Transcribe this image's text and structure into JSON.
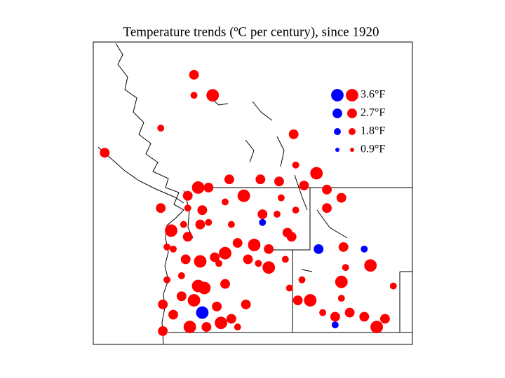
{
  "chart_data": {
    "type": "scatter",
    "title": "Temperature trends (ºC per century), since 1920",
    "xlim": [
      -127.45,
      -112.08
    ],
    "ylim": [
      41.35,
      56.1
    ],
    "colors": {
      "warming": "#ff0000",
      "cooling": "#0000ff"
    },
    "legend": [
      {
        "value": 3.6,
        "label": "3.6°F"
      },
      {
        "value": 2.7,
        "label": "2.7°F"
      },
      {
        "value": 1.8,
        "label": "1.8°F"
      },
      {
        "value": 0.9,
        "label": "0.9°F"
      }
    ],
    "x": [
      -122.6,
      -122.6,
      -121.7,
      -124.2,
      -126.9,
      -117.8,
      -117.7,
      -116.7,
      -120.9,
      -119.4,
      -118.5,
      -122.4,
      -121.9,
      -122.9,
      -120.2,
      -118.4,
      -117.3,
      -116.2,
      -116.2,
      -115.5,
      -124.2,
      -122.9,
      -122.2,
      -121.1,
      -119.3,
      -118.6,
      -117.7,
      -123.1,
      -122.3,
      -121.9,
      -120.8,
      -123.7,
      -122.9,
      -119.3,
      -118.1,
      -123.9,
      -123.6,
      -120.5,
      -119.7,
      -119.0,
      -117.9,
      -116.6,
      -115.4,
      -114.4,
      -123.0,
      -122.3,
      -121.6,
      -121.1,
      -121.4,
      -120.0,
      -119.5,
      -119.0,
      -118.2,
      -115.3,
      -114.1,
      -123.9,
      -123.2,
      -122.4,
      -122.1,
      -121.1,
      -117.4,
      -115.5,
      -118.0,
      -123.2,
      -122.6,
      -124.1,
      -117.6,
      -117.0,
      -115.5,
      -113.0,
      -123.6,
      -122.2,
      -121.5,
      -120.1,
      -116.4,
      -115.8,
      -115.1,
      -124.1,
      -122.8,
      -122.0,
      -121.3,
      -120.8,
      -120.5,
      -115.8,
      -114.4,
      -113.8,
      -113.4
    ],
    "y": [
      54.5,
      53.5,
      53.5,
      51.9,
      50.7,
      51.6,
      50.1,
      49.7,
      49.4,
      49.4,
      49.3,
      49.0,
      49.0,
      48.6,
      48.6,
      48.5,
      49.1,
      48.9,
      48.0,
      48.5,
      48.0,
      48.0,
      47.9,
      48.3,
      47.7,
      47.7,
      47.9,
      47.2,
      47.2,
      47.3,
      47.2,
      46.9,
      46.6,
      47.3,
      46.8,
      46.1,
      46.0,
      46.3,
      46.2,
      46.0,
      46.6,
      46.0,
      46.1,
      46.0,
      45.5,
      45.4,
      45.6,
      45.8,
      45.3,
      45.5,
      45.3,
      45.1,
      45.5,
      45.1,
      45.2,
      44.5,
      44.7,
      44.2,
      44.1,
      44.3,
      44.5,
      44.4,
      44.1,
      43.7,
      43.5,
      43.3,
      43.5,
      43.5,
      43.6,
      44.2,
      42.8,
      42.9,
      43.2,
      43.3,
      42.9,
      42.7,
      42.9,
      42.0,
      42.2,
      42.2,
      42.4,
      42.6,
      42.2,
      42.3,
      42.7,
      42.2,
      42.6
    ],
    "values": [
      2.7,
      1.8,
      3.6,
      1.8,
      2.7,
      2.7,
      1.8,
      3.6,
      2.7,
      2.7,
      2.7,
      3.6,
      2.7,
      2.7,
      3.6,
      1.8,
      2.7,
      2.7,
      2.7,
      2.7,
      2.7,
      1.8,
      2.7,
      1.8,
      2.7,
      1.8,
      1.8,
      1.8,
      2.7,
      1.8,
      1.8,
      3.6,
      2.7,
      -1.8,
      2.7,
      1.8,
      1.8,
      2.7,
      3.6,
      2.7,
      2.7,
      -2.7,
      2.7,
      -1.8,
      2.7,
      3.6,
      2.7,
      3.6,
      1.8,
      2.7,
      1.8,
      3.6,
      1.8,
      1.8,
      3.6,
      1.8,
      1.8,
      3.6,
      3.6,
      2.7,
      1.8,
      3.6,
      1.8,
      2.7,
      3.6,
      2.7,
      2.7,
      3.6,
      1.8,
      1.8,
      2.7,
      -3.6,
      2.7,
      2.7,
      1.8,
      2.7,
      2.7,
      2.7,
      3.6,
      2.7,
      3.6,
      2.7,
      1.8,
      -1.8,
      2.7,
      3.6,
      2.7
    ]
  }
}
